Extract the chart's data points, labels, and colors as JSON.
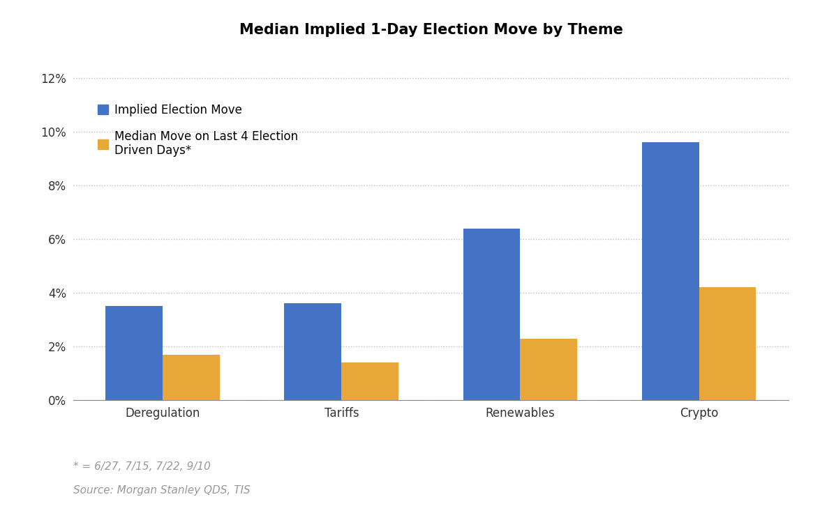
{
  "title": "Median Implied 1-Day Election Move by Theme",
  "categories": [
    "Deregulation",
    "Tariffs",
    "Renewables",
    "Crypto"
  ],
  "series1_label": "Implied Election Move",
  "series2_label": "Median Move on Last 4 Election\nDriven Days*",
  "series1_values": [
    0.035,
    0.036,
    0.064,
    0.096
  ],
  "series2_values": [
    0.017,
    0.014,
    0.023,
    0.042
  ],
  "series1_color": "#4472C4",
  "series2_color": "#E8A838",
  "ylim": [
    0,
    0.13
  ],
  "yticks": [
    0.0,
    0.02,
    0.04,
    0.06,
    0.08,
    0.1,
    0.12
  ],
  "ytick_labels": [
    "0%",
    "2%",
    "4%",
    "6%",
    "8%",
    "10%",
    "12%"
  ],
  "footnote1": "* = 6/27, 7/15, 7/22, 9/10",
  "footnote2": "Source: Morgan Stanley QDS, TIS",
  "background_color": "#FFFFFF",
  "grid_color": "#BBBBBB",
  "bar_width": 0.32,
  "title_fontsize": 15,
  "tick_fontsize": 12,
  "legend_fontsize": 12,
  "footnote_fontsize": 11,
  "footnote_color": "#999999"
}
